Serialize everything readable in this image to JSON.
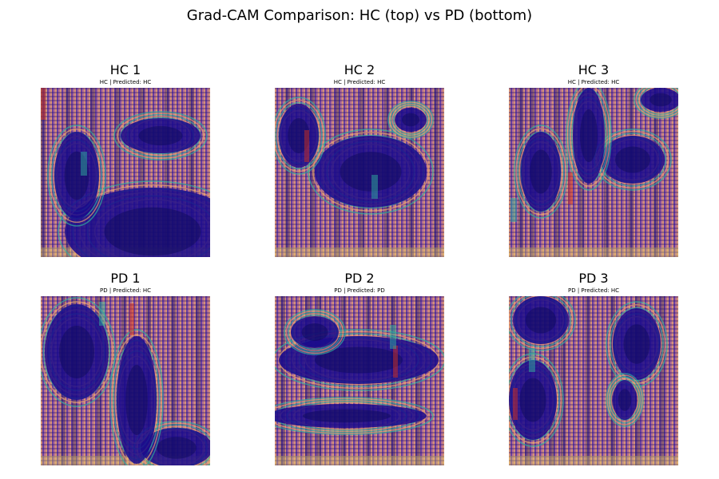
{
  "figure": {
    "title": "Grad-CAM Comparison: HC (top) vs PD (bottom)"
  },
  "panels": [
    {
      "title": "HC 1",
      "subtitle": "HC | Predicted: HC",
      "heatmap_theme": "interference-pattern, cool-blue dominant lower-right"
    },
    {
      "title": "HC 2",
      "subtitle": "HC | Predicted: HC",
      "heatmap_theme": "interference-pattern, dark-blue central lobe"
    },
    {
      "title": "HC 3",
      "subtitle": "HC | Predicted: HC",
      "heatmap_theme": "interference-pattern, blue branching bands"
    },
    {
      "title": "PD 1",
      "subtitle": "PD | Predicted: HC",
      "heatmap_theme": "interference-pattern, blue ring left"
    },
    {
      "title": "PD 2",
      "subtitle": "PD | Predicted: PD",
      "heatmap_theme": "interference-pattern, sweeping blue bands"
    },
    {
      "title": "PD 3",
      "subtitle": "PD | Predicted: HC",
      "heatmap_theme": "interference-pattern, dark blue blobs right"
    }
  ],
  "colors": {
    "dark_blue": "#1a0a8c",
    "navy": "#0d0a5a",
    "purple": "#6a3fa0",
    "orange": "#e8a070",
    "yellow": "#f0e060",
    "red": "#d03020",
    "teal": "#30b0a0"
  }
}
